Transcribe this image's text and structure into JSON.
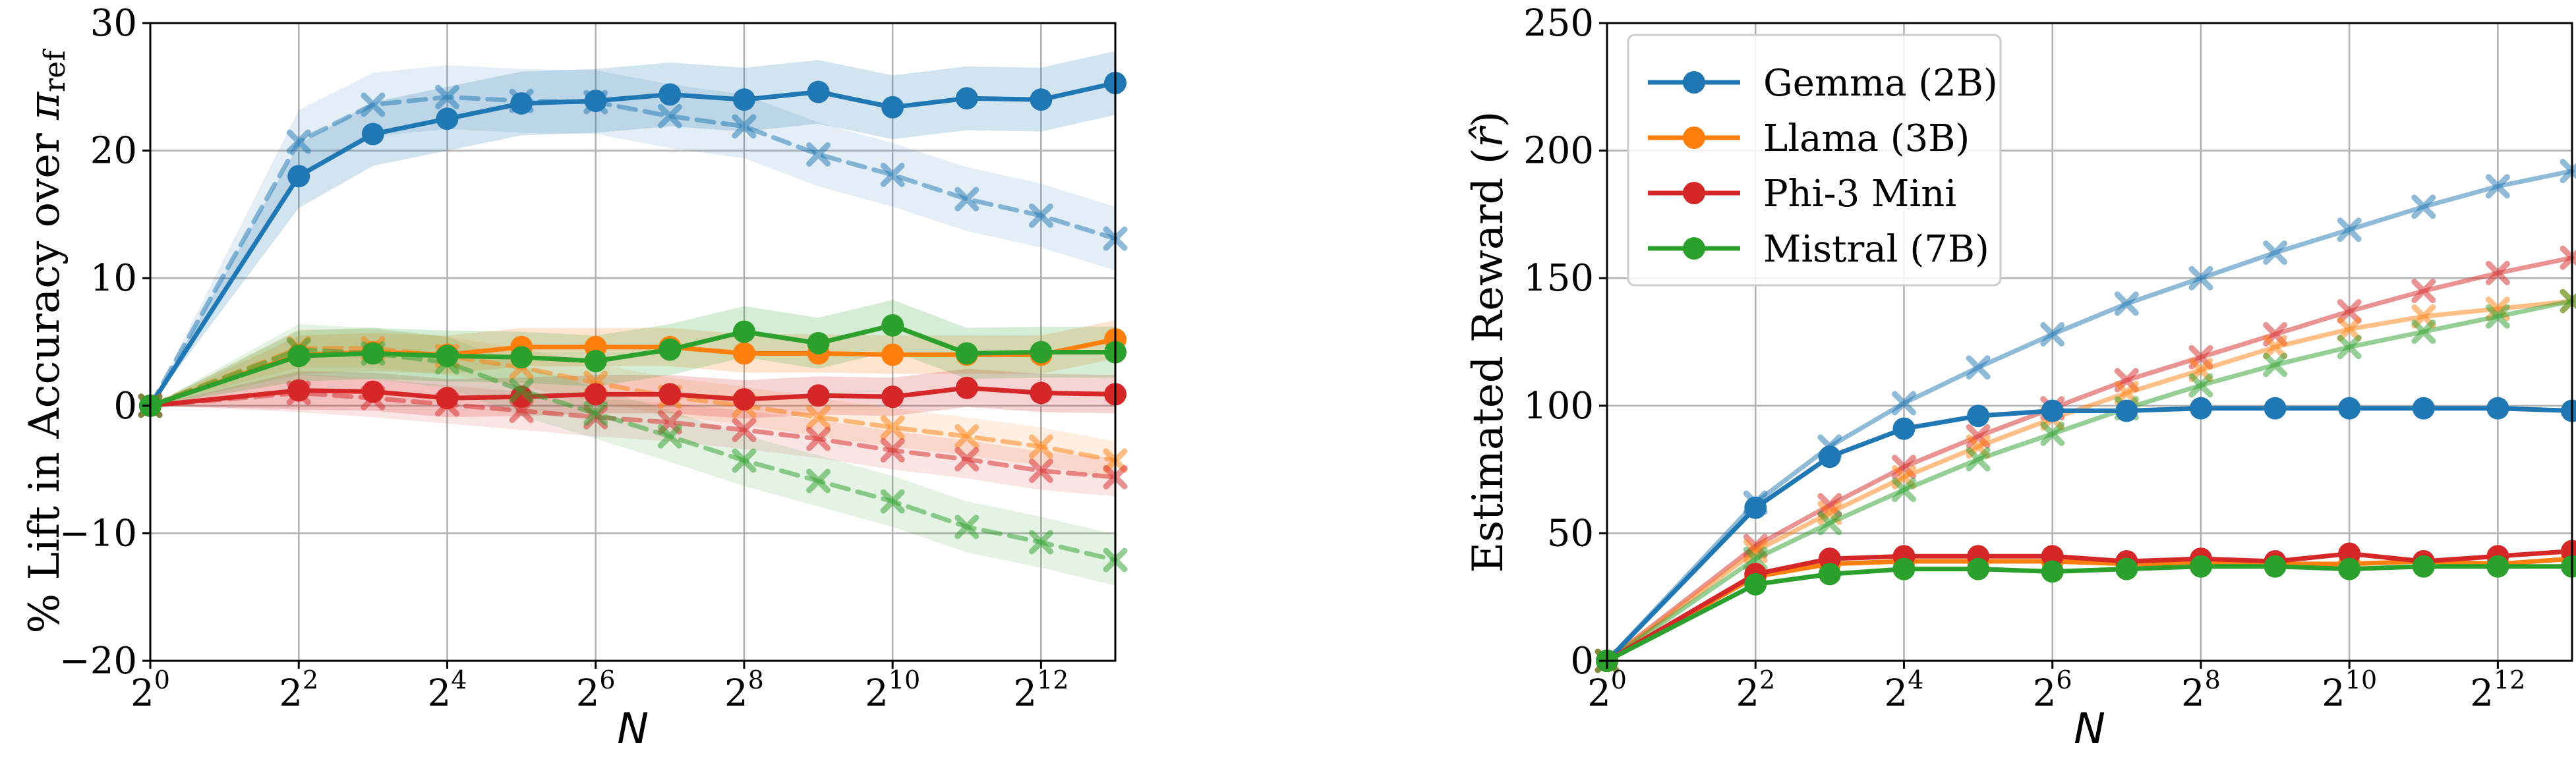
{
  "colors": {
    "gemma": "#1f77b4",
    "llama": "#ff7f0e",
    "phi": "#d62728",
    "mistral": "#2ca02c",
    "grid": "#b0b0b0"
  },
  "chart_data": [
    {
      "type": "line",
      "title": "",
      "xlabel": "N",
      "ylabel_prefix": "% Lift in Accuracy over ",
      "ylabel_symbol": "π",
      "ylabel_subscript": "ref",
      "xscale": "log2",
      "x_exponents": [
        0,
        2,
        3,
        4,
        5,
        6,
        7,
        8,
        9,
        10,
        11,
        12,
        13
      ],
      "xlim_exponents": [
        0,
        13
      ],
      "ylim": [
        -20,
        30
      ],
      "yticks": [
        "30",
        "20",
        "10",
        "0",
        "−10",
        "−20"
      ],
      "ytick_values": [
        30,
        20,
        10,
        0,
        -10,
        -20
      ],
      "xtick_base": "2",
      "xtick_exponents": [
        "0",
        "2",
        "4",
        "6",
        "8",
        "10",
        "12"
      ],
      "grid": true,
      "series": [
        {
          "name": "Gemma (2B)",
          "color_key": "gemma",
          "style": "solid",
          "marker": "circle",
          "band": 2.5,
          "values": [
            0,
            18,
            21.3,
            22.5,
            23.7,
            23.9,
            24.4,
            24.0,
            24.6,
            23.4,
            24.1,
            24.0,
            25.3
          ]
        },
        {
          "name": "Gemma (2B)",
          "color_key": "gemma",
          "style": "dashed",
          "marker": "x",
          "band": 2.5,
          "values": [
            0,
            20.7,
            23.6,
            24.2,
            23.9,
            23.8,
            22.7,
            21.9,
            19.7,
            18.1,
            16.2,
            14.9,
            13.1
          ]
        },
        {
          "name": "Llama (3B)",
          "color_key": "llama",
          "style": "solid",
          "marker": "circle",
          "band": 1.5,
          "values": [
            0,
            4.0,
            4.2,
            4.0,
            4.6,
            4.6,
            4.6,
            4.1,
            4.1,
            4.0,
            4.0,
            4.0,
            5.2
          ]
        },
        {
          "name": "Llama (3B)",
          "color_key": "llama",
          "style": "dashed",
          "marker": "x",
          "band": 1.5,
          "values": [
            0,
            4.5,
            4.5,
            3.9,
            3.0,
            1.8,
            0.7,
            0.0,
            -0.9,
            -1.7,
            -2.4,
            -3.2,
            -4.3
          ]
        },
        {
          "name": "Phi-3 Mini",
          "color_key": "phi",
          "style": "solid",
          "marker": "circle",
          "band": 1.5,
          "values": [
            0,
            1.2,
            1.1,
            0.6,
            0.7,
            0.9,
            0.9,
            0.5,
            0.8,
            0.7,
            1.4,
            1.0,
            0.9
          ]
        },
        {
          "name": "Phi-3 Mini",
          "color_key": "phi",
          "style": "dashed",
          "marker": "x",
          "band": 1.5,
          "values": [
            0,
            1.0,
            0.6,
            0.1,
            -0.4,
            -0.9,
            -1.3,
            -1.9,
            -2.6,
            -3.5,
            -4.2,
            -5.1,
            -5.6
          ]
        },
        {
          "name": "Mistral (7B)",
          "color_key": "mistral",
          "style": "solid",
          "marker": "circle",
          "band": 2.0,
          "values": [
            0,
            3.9,
            4.1,
            3.9,
            3.8,
            3.5,
            4.4,
            5.8,
            4.9,
            6.3,
            4.1,
            4.2,
            4.2
          ]
        },
        {
          "name": "Mistral (7B)",
          "color_key": "mistral",
          "style": "dashed",
          "marker": "x",
          "band": 2.0,
          "values": [
            0,
            4.4,
            4.1,
            3.4,
            1.2,
            -0.6,
            -2.4,
            -4.3,
            -5.9,
            -7.5,
            -9.5,
            -10.7,
            -12.1
          ]
        }
      ]
    },
    {
      "type": "line",
      "title": "",
      "xlabel": "N",
      "ylabel_prefix": "Estimated Reward (",
      "ylabel_symbol": "r̂",
      "ylabel_suffix": ")",
      "xscale": "log2",
      "x_exponents": [
        0,
        2,
        3,
        4,
        5,
        6,
        7,
        8,
        9,
        10,
        11,
        12,
        13
      ],
      "xlim_exponents": [
        0,
        13
      ],
      "ylim": [
        0,
        250
      ],
      "yticks": [
        "250",
        "200",
        "150",
        "100",
        "50",
        "0"
      ],
      "ytick_values": [
        250,
        200,
        150,
        100,
        50,
        0
      ],
      "xtick_base": "2",
      "xtick_exponents": [
        "0",
        "2",
        "4",
        "6",
        "8",
        "10",
        "12"
      ],
      "grid": true,
      "legend": {
        "placement": "top-left",
        "entries": [
          {
            "label": "Gemma (2B)",
            "color_key": "gemma"
          },
          {
            "label": "Llama (3B)",
            "color_key": "llama"
          },
          {
            "label": "Phi-3 Mini",
            "color_key": "phi"
          },
          {
            "label": "Mistral (7B)",
            "color_key": "mistral"
          }
        ]
      },
      "series": [
        {
          "name": "Gemma (2B)",
          "color_key": "gemma",
          "style": "solid",
          "marker": "x",
          "faded": true,
          "values": [
            0,
            62,
            84,
            101,
            115,
            128,
            140,
            150,
            160,
            169,
            178,
            186,
            192
          ]
        },
        {
          "name": "Phi-3 Mini",
          "color_key": "phi",
          "style": "solid",
          "marker": "x",
          "faded": true,
          "values": [
            0,
            45,
            61,
            76,
            88,
            99,
            110,
            119,
            128,
            137,
            145,
            152,
            158
          ]
        },
        {
          "name": "Llama (3B)",
          "color_key": "llama",
          "style": "solid",
          "marker": "x",
          "faded": true,
          "values": [
            0,
            43,
            58,
            72,
            84,
            95,
            105,
            114,
            123,
            130,
            135,
            138,
            141
          ]
        },
        {
          "name": "Mistral (7B)",
          "color_key": "mistral",
          "style": "solid",
          "marker": "x",
          "faded": true,
          "values": [
            0,
            40,
            54,
            67,
            79,
            89,
            99,
            108,
            116,
            123,
            129,
            135,
            141
          ]
        },
        {
          "name": "Gemma (2B)",
          "color_key": "gemma",
          "style": "solid",
          "marker": "circle",
          "values": [
            0,
            60,
            80,
            91,
            96,
            98,
            98,
            99,
            99,
            99,
            99,
            99,
            98
          ]
        },
        {
          "name": "Llama (3B)",
          "color_key": "llama",
          "style": "solid",
          "marker": "circle",
          "values": [
            0,
            33,
            38,
            39,
            39,
            39,
            38,
            38,
            38,
            38,
            39,
            38,
            40
          ]
        },
        {
          "name": "Phi-3 Mini",
          "color_key": "phi",
          "style": "solid",
          "marker": "circle",
          "values": [
            0,
            34,
            40,
            41,
            41,
            41,
            39,
            40,
            39,
            42,
            39,
            41,
            43
          ]
        },
        {
          "name": "Mistral (7B)",
          "color_key": "mistral",
          "style": "solid",
          "marker": "circle",
          "values": [
            0,
            30,
            34,
            36,
            36,
            35,
            36,
            37,
            37,
            36,
            37,
            37,
            37
          ]
        }
      ]
    }
  ]
}
